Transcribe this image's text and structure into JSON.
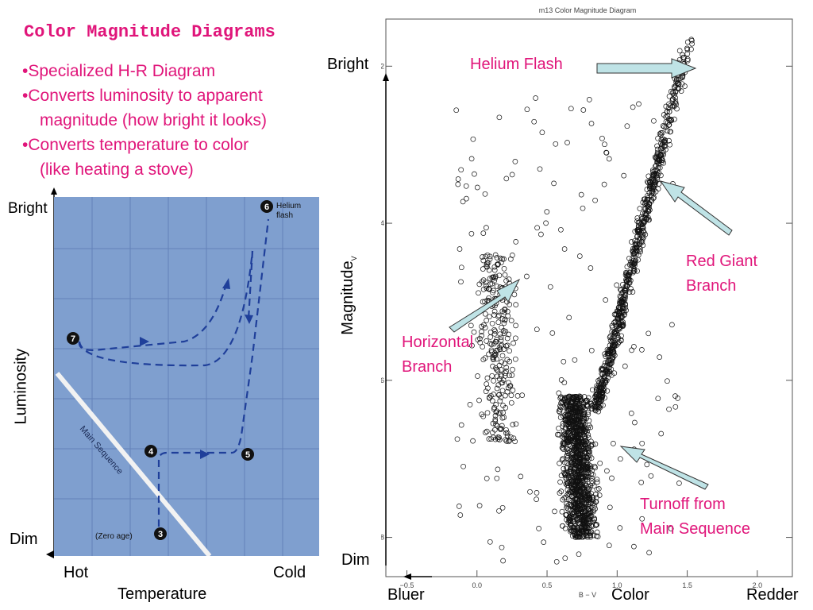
{
  "slide": {
    "title": "Color Magnitude Diagrams",
    "bullets": [
      "•Specialized H-R Diagram",
      "•Converts luminosity to apparent",
      "magnitude (how bright it looks)",
      "•Converts temperature to color",
      "(like heating a stove)"
    ]
  },
  "hr_diagram": {
    "y_top": "Bright",
    "y_bottom": "Dim",
    "y_axis": "Luminosity",
    "x_left": "Hot",
    "x_right": "Cold",
    "x_axis": "Temperature",
    "main_sequence": "Main Sequence",
    "zero_age": "(Zero age)",
    "helium_flash_line1": "Helium",
    "helium_flash_line2": "flash",
    "points": [
      "3",
      "4",
      "5",
      "6",
      "7"
    ]
  },
  "cmd": {
    "title": "m13 Color Magnitude Diagram",
    "bright": "Bright",
    "dim": "Dim",
    "y_axis": "Magnitude",
    "y_axis_sub": "V",
    "x_axis": "B − V",
    "x_color": "Color",
    "x_left": "Bluer",
    "x_right": "Redder",
    "annotations": {
      "helium_flash": "Helium Flash",
      "red_giant_1": "Red Giant",
      "red_giant_2": "Branch",
      "horizontal_1": "Horizontal",
      "horizontal_2": "Branch",
      "turnoff_1": "Turnoff from",
      "turnoff_2": "Main Sequence"
    },
    "x_ticks": [
      "−0.5",
      "0.0",
      "0.5",
      "1.0",
      "1.5",
      "2.0"
    ],
    "y_ticks": [
      "12",
      "14",
      "16",
      "18"
    ]
  },
  "chart_data": {
    "type": "scatter",
    "title": "m13 Color Magnitude Diagram",
    "xlabel": "B − V",
    "ylabel": "Magnitude V",
    "xlim": [
      -0.65,
      2.25
    ],
    "ylim": [
      18.5,
      11.4
    ],
    "x_ticks": [
      -0.5,
      0.0,
      0.5,
      1.0,
      1.5,
      2.0
    ],
    "y_ticks": [
      12,
      14,
      16,
      18
    ],
    "regions": [
      {
        "name": "Helium Flash",
        "x": 1.5,
        "y": 11.55
      },
      {
        "name": "Red Giant Branch",
        "x_range": [
          0.9,
          1.35
        ],
        "y_range": [
          12.0,
          15.0
        ]
      },
      {
        "name": "Horizontal Branch",
        "x_range": [
          -0.1,
          0.35
        ],
        "y_range": [
          14.3,
          16.5
        ]
      },
      {
        "name": "Turnoff from Main Sequence",
        "x": 0.85,
        "y": 17.0
      }
    ]
  },
  "colors": {
    "accent": "#e0157a",
    "panel": "#7f9fcf",
    "track": "#1f3f9a",
    "arrow_fill": "#bfe3e6"
  }
}
